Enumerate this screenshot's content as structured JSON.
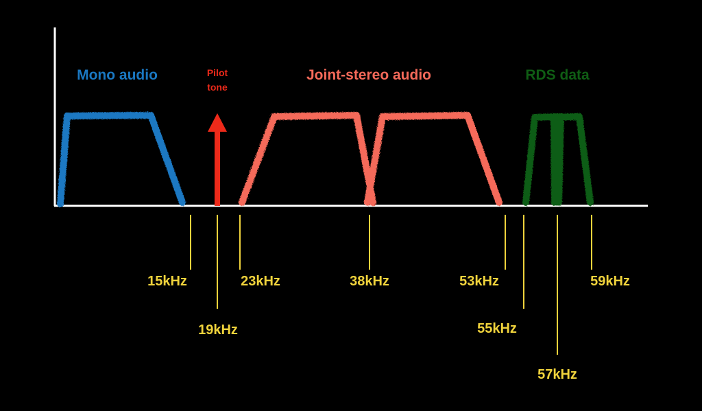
{
  "colors": {
    "background": "#000000",
    "axis": "#ffffff",
    "mono": "#1a78c2",
    "pilot": "#ee2a1a",
    "stereo": "#f56a5a",
    "rds": "#0f5d14",
    "ticks": "#f0d33c"
  },
  "bands": {
    "mono": {
      "label": "Mono audio"
    },
    "pilot": {
      "label_line1": "Pilot",
      "label_line2": "tone"
    },
    "stereo": {
      "label": "Joint-stereo audio"
    },
    "rds": {
      "label": "RDS data"
    }
  },
  "frequency_markers": [
    {
      "label": "15kHz",
      "khz": 15
    },
    {
      "label": "19kHz",
      "khz": 19
    },
    {
      "label": "23kHz",
      "khz": 23
    },
    {
      "label": "38kHz",
      "khz": 38
    },
    {
      "label": "53kHz",
      "khz": 53
    },
    {
      "label": "55kHz",
      "khz": 55
    },
    {
      "label": "57kHz",
      "khz": 57
    },
    {
      "label": "59kHz",
      "khz": 59
    }
  ]
}
